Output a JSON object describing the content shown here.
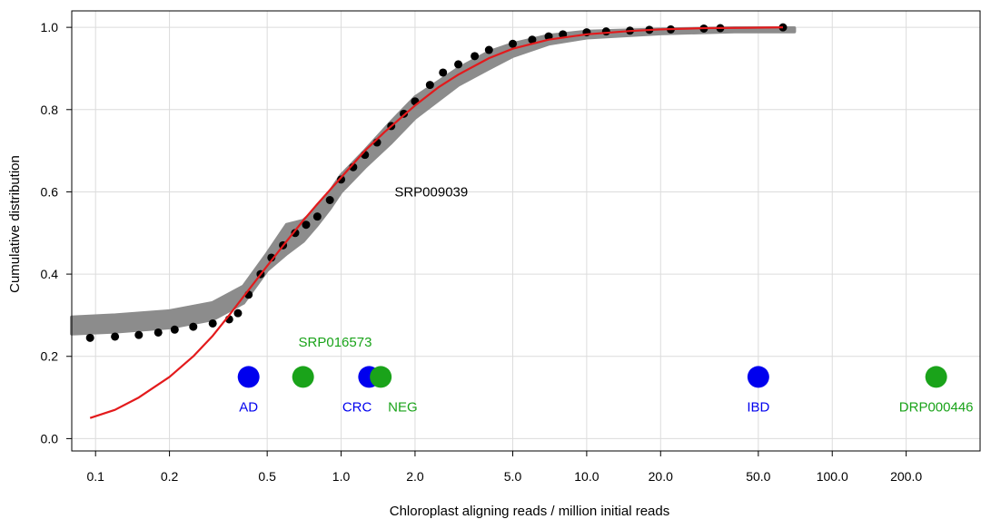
{
  "chart_data": {
    "type": "scatter",
    "title": "",
    "xlabel": "Chloroplast aligning reads / million initial reads",
    "ylabel": "Cumulative distribution",
    "x_scale": "log",
    "xlim": [
      0.08,
      400
    ],
    "ylim": [
      -0.03,
      1.04
    ],
    "x_ticks": [
      0.1,
      0.2,
      0.5,
      1.0,
      2.0,
      5.0,
      10.0,
      20.0,
      50.0,
      100.0,
      200.0
    ],
    "x_tick_labels": [
      "0.1",
      "0.2",
      "0.5",
      "1.0",
      "2.0",
      "5.0",
      "10.0",
      "20.0",
      "50.0",
      "100.0",
      "200.0"
    ],
    "y_ticks": [
      0.0,
      0.2,
      0.4,
      0.6,
      0.8,
      1.0
    ],
    "y_tick_labels": [
      "0.0",
      "0.2",
      "0.4",
      "0.6",
      "0.8",
      "1.0"
    ],
    "grid": true,
    "colors": {
      "points": "#000000",
      "band": "#8c8c8c",
      "fit": "#e31a1c",
      "blue": "#0000ee",
      "green": "#1aa31a",
      "grid": "#dcdcdc"
    },
    "empirical_cdf": {
      "name": "SRP009039",
      "x": [
        0.095,
        0.12,
        0.15,
        0.18,
        0.21,
        0.25,
        0.3,
        0.35,
        0.38,
        0.42,
        0.47,
        0.52,
        0.58,
        0.65,
        0.72,
        0.8,
        0.9,
        1.0,
        1.12,
        1.25,
        1.4,
        1.6,
        1.8,
        2.0,
        2.3,
        2.6,
        3.0,
        3.5,
        4.0,
        5.0,
        6.0,
        7.0,
        8.0,
        10.0,
        12.0,
        15.0,
        18.0,
        22.0,
        30.0,
        35.0,
        63.0
      ],
      "y": [
        0.245,
        0.248,
        0.252,
        0.258,
        0.265,
        0.272,
        0.28,
        0.29,
        0.305,
        0.35,
        0.4,
        0.44,
        0.47,
        0.5,
        0.52,
        0.54,
        0.58,
        0.63,
        0.66,
        0.69,
        0.72,
        0.76,
        0.79,
        0.82,
        0.86,
        0.89,
        0.91,
        0.93,
        0.945,
        0.96,
        0.97,
        0.978,
        0.983,
        0.988,
        0.99,
        0.992,
        0.994,
        0.995,
        0.997,
        0.998,
        1.0
      ]
    },
    "reference_band": {
      "x": [
        0.08,
        0.12,
        0.2,
        0.3,
        0.4,
        0.5,
        0.6,
        0.7,
        0.8,
        0.9,
        1.0,
        1.25,
        1.6,
        2.0,
        3.0,
        4.0,
        5.0,
        7.0,
        10.0,
        20.0,
        40.0,
        70.0
      ],
      "y_low": [
        0.255,
        0.26,
        0.27,
        0.29,
        0.33,
        0.41,
        0.45,
        0.48,
        0.52,
        0.56,
        0.6,
        0.66,
        0.72,
        0.78,
        0.86,
        0.9,
        0.93,
        0.96,
        0.975,
        0.985,
        0.99,
        0.99
      ],
      "y_high": [
        0.295,
        0.3,
        0.31,
        0.33,
        0.37,
        0.45,
        0.52,
        0.53,
        0.56,
        0.6,
        0.64,
        0.7,
        0.77,
        0.83,
        0.9,
        0.94,
        0.96,
        0.98,
        0.99,
        0.995,
        0.998,
        0.998
      ]
    },
    "fit_curve": {
      "x": [
        0.095,
        0.12,
        0.15,
        0.2,
        0.25,
        0.3,
        0.35,
        0.4,
        0.5,
        0.6,
        0.7,
        0.8,
        1.0,
        1.25,
        1.5,
        2.0,
        2.5,
        3.0,
        4.0,
        5.0,
        7.0,
        10.0,
        15.0,
        20.0,
        30.0,
        45.0,
        63.0
      ],
      "y": [
        0.05,
        0.07,
        0.1,
        0.15,
        0.2,
        0.25,
        0.3,
        0.345,
        0.42,
        0.48,
        0.53,
        0.57,
        0.635,
        0.7,
        0.745,
        0.81,
        0.855,
        0.885,
        0.925,
        0.948,
        0.97,
        0.983,
        0.991,
        0.995,
        0.998,
        0.999,
        1.0
      ]
    },
    "study_points": [
      {
        "label": "AD",
        "x": 0.42,
        "y": 0.15,
        "color": "#0000ee",
        "label_pos": "below"
      },
      {
        "label": "",
        "x": 0.7,
        "y": 0.15,
        "color": "#1aa31a",
        "label_pos": "none"
      },
      {
        "label": "CRC",
        "x": 1.3,
        "y": 0.15,
        "color": "#0000ee",
        "label_pos": "below-left"
      },
      {
        "label": "NEG",
        "x": 1.45,
        "y": 0.15,
        "color": "#1aa31a",
        "label_pos": "below-right"
      },
      {
        "label": "IBD",
        "x": 50.0,
        "y": 0.15,
        "color": "#0000ee",
        "label_pos": "below"
      },
      {
        "label": "DRP000446",
        "x": 265.0,
        "y": 0.15,
        "color": "#1aa31a",
        "label_pos": "below"
      }
    ],
    "annotations": [
      {
        "text": "SRP009039",
        "x": 1.65,
        "y": 0.6,
        "color": "#000000"
      },
      {
        "text": "SRP016573",
        "x": 0.67,
        "y": 0.235,
        "color": "#1aa31a"
      }
    ]
  }
}
